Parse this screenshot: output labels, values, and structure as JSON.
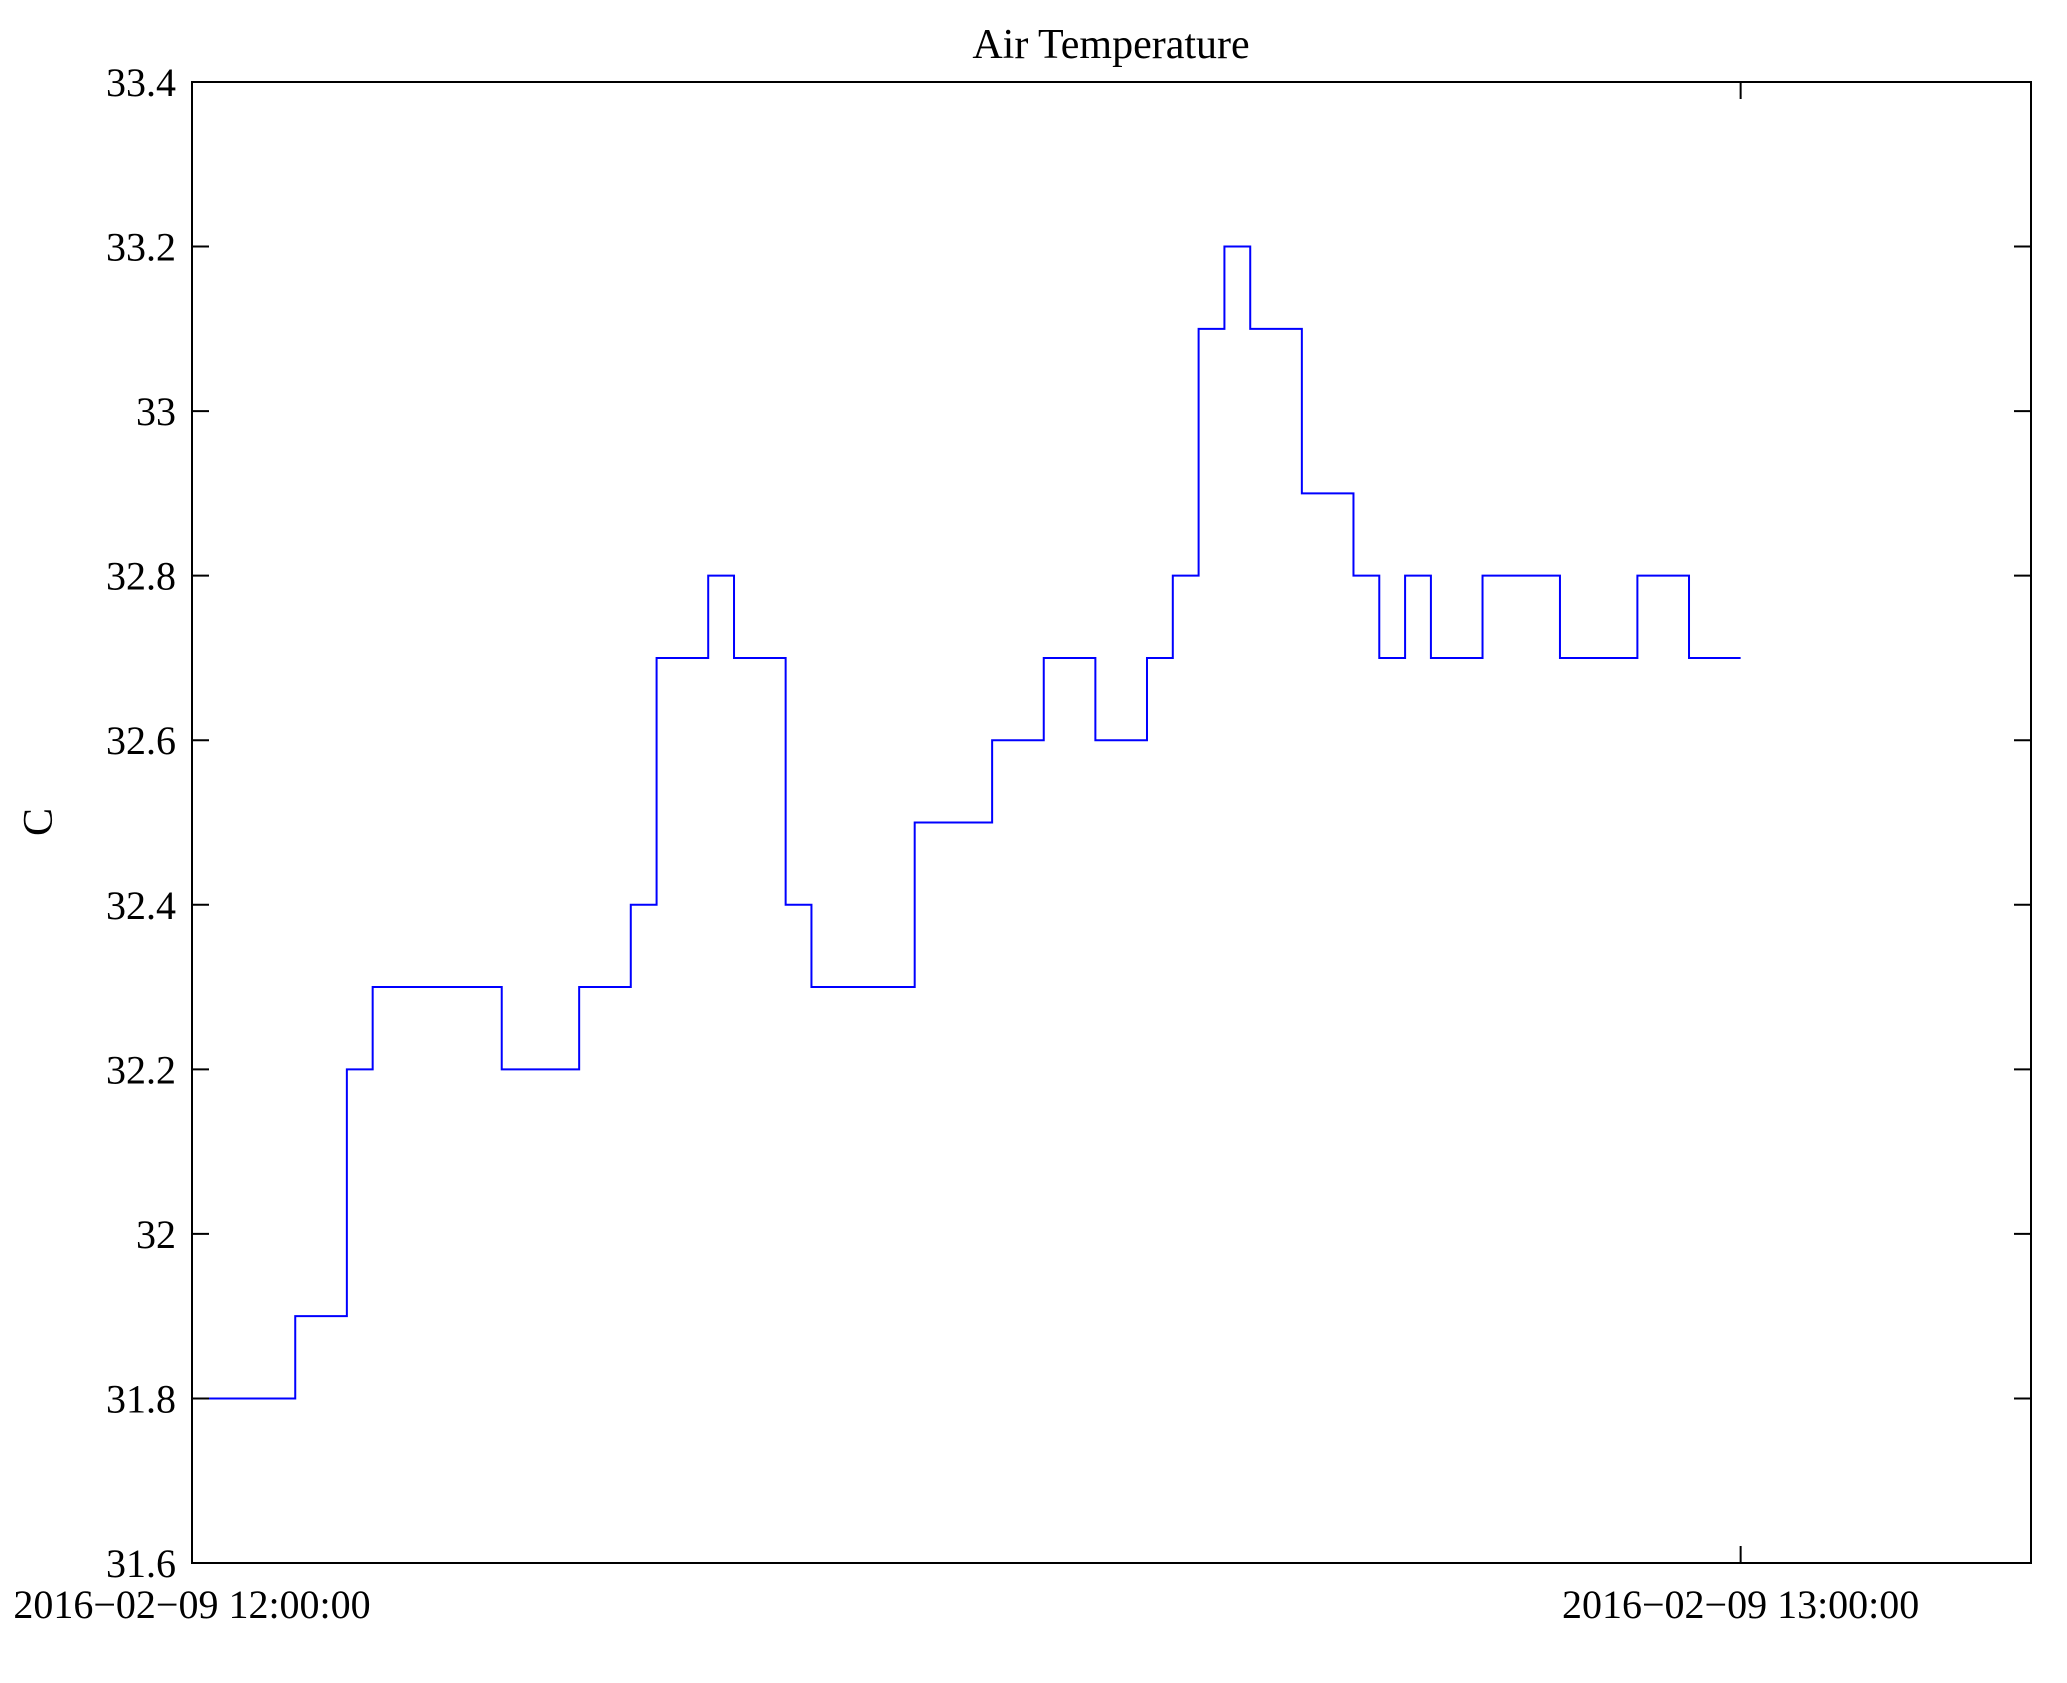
{
  "figure": {
    "background": "#ffffff"
  },
  "chart_data": {
    "type": "line",
    "step": true,
    "title": "Air Temperature",
    "xlabel": "",
    "ylabel": "C",
    "line_color": "#0000ff",
    "axis_color": "#000000",
    "grid": false,
    "legend_position": "none",
    "x_unit": "minutes after 2016-02-09 12:00:00",
    "x_start": "2016-02-09 12:00:00",
    "x_end": "2016-02-09 13:00:00",
    "x": [
      0,
      1,
      2,
      3,
      4,
      5,
      6,
      7,
      8,
      9,
      10,
      11,
      12,
      13,
      14,
      15,
      16,
      17,
      18,
      19,
      20,
      21,
      22,
      23,
      24,
      25,
      26,
      27,
      28,
      29,
      30,
      31,
      32,
      33,
      34,
      35,
      36,
      37,
      38,
      39,
      40,
      41,
      42,
      43,
      44,
      45,
      46,
      47,
      48,
      49,
      50,
      51,
      52,
      53,
      54,
      55,
      56,
      57,
      58,
      59,
      60
    ],
    "values": [
      31.8,
      31.8,
      31.8,
      31.8,
      31.9,
      31.9,
      32.2,
      32.3,
      32.3,
      32.3,
      32.3,
      32.3,
      32.2,
      32.2,
      32.2,
      32.3,
      32.3,
      32.4,
      32.7,
      32.7,
      32.8,
      32.7,
      32.7,
      32.4,
      32.3,
      32.3,
      32.3,
      32.3,
      32.5,
      32.5,
      32.5,
      32.6,
      32.6,
      32.7,
      32.7,
      32.6,
      32.6,
      32.7,
      32.8,
      33.1,
      33.2,
      33.1,
      33.1,
      32.9,
      32.9,
      32.8,
      32.7,
      32.8,
      32.7,
      32.7,
      32.8,
      32.8,
      32.8,
      32.7,
      32.7,
      32.7,
      32.8,
      32.8,
      32.7,
      32.7,
      32.7
    ],
    "xlim": [
      0,
      71.25
    ],
    "ylim": [
      31.6,
      33.4
    ],
    "xtick_values": [
      0,
      60
    ],
    "xtick_labels": [
      "2016−02−09 12:00:00",
      "2016−02−09 13:00:00"
    ],
    "ytick_values": [
      31.6,
      31.8,
      32,
      32.2,
      32.4,
      32.6,
      32.8,
      33,
      33.2,
      33.4
    ],
    "ytick_labels": [
      "31.6",
      "31.8",
      "32",
      "32.2",
      "32.4",
      "32.6",
      "32.8",
      "33",
      "33.2",
      "33.4"
    ]
  }
}
